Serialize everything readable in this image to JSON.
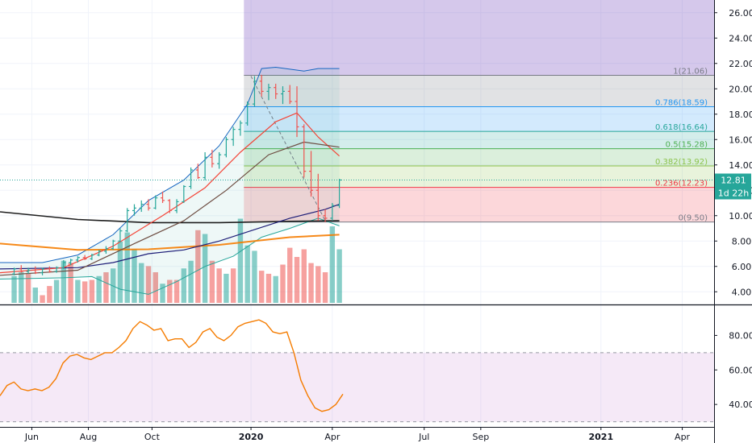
{
  "chart_data": {
    "type": "candlestick",
    "panels": [
      {
        "name": "price",
        "y_range": [
          3,
          27
        ],
        "y_ticks": [
          4,
          6,
          8,
          10,
          12,
          14,
          16,
          18,
          20,
          22,
          24,
          26
        ],
        "y_tick_labels": [
          "4.00",
          "6.00",
          "8.00",
          "10.00",
          "12.00",
          "14.00",
          "16.00",
          "18.00",
          "20.00",
          "22.00",
          "24.00",
          "26.00"
        ],
        "last_price_label": "12.81",
        "last_price": 12.81,
        "countdown_label": "1d 22h",
        "fib_levels": [
          {
            "label": "1(21.06)",
            "value": 21.06,
            "color": "#787b86"
          },
          {
            "label": "0.786(18.59)",
            "value": 18.59,
            "color": "#2196f3"
          },
          {
            "label": "0.618(16.64)",
            "value": 16.64,
            "color": "#26a69a"
          },
          {
            "label": "0.5(15.28)",
            "value": 15.28,
            "color": "#4caf50"
          },
          {
            "label": "0.382(13.92)",
            "value": 13.92,
            "color": "#8bc34a"
          },
          {
            "label": "0.236(12.23)",
            "value": 12.23,
            "color": "#f23645"
          },
          {
            "label": "0(9.50)",
            "value": 9.5,
            "color": "#787b86"
          }
        ],
        "candles": [
          [
            1,
            5.4,
            5.9,
            5.3,
            5.8
          ],
          [
            2,
            5.8,
            6.1,
            5.5,
            5.6
          ],
          [
            3,
            5.6,
            5.9,
            5.4,
            5.7
          ],
          [
            4,
            5.7,
            6.0,
            5.4,
            5.5
          ],
          [
            5,
            5.5,
            5.9,
            5.3,
            5.8
          ],
          [
            6,
            5.8,
            6.0,
            5.5,
            5.6
          ],
          [
            7,
            5.6,
            6.0,
            5.5,
            5.9
          ],
          [
            8,
            5.9,
            6.5,
            5.8,
            6.3
          ],
          [
            9,
            6.3,
            6.6,
            6.1,
            6.5
          ],
          [
            10,
            6.5,
            6.8,
            6.3,
            6.7
          ],
          [
            11,
            6.7,
            6.9,
            6.5,
            6.6
          ],
          [
            12,
            6.6,
            7.0,
            6.5,
            6.9
          ],
          [
            13,
            6.9,
            7.3,
            6.8,
            7.2
          ],
          [
            14,
            7.2,
            7.6,
            7.0,
            7.4
          ],
          [
            15,
            7.4,
            8.1,
            7.3,
            8.0
          ],
          [
            16,
            8.0,
            9.0,
            7.9,
            8.8
          ],
          [
            17,
            8.8,
            10.6,
            8.7,
            10.4
          ],
          [
            18,
            10.4,
            10.9,
            10.0,
            10.6
          ],
          [
            19,
            10.6,
            11.2,
            10.3,
            10.9
          ],
          [
            20,
            10.9,
            11.3,
            10.4,
            10.6
          ],
          [
            21,
            10.6,
            11.6,
            10.5,
            11.4
          ],
          [
            22,
            11.4,
            11.9,
            11.0,
            11.2
          ],
          [
            23,
            11.2,
            11.3,
            10.2,
            10.4
          ],
          [
            24,
            10.4,
            11.3,
            10.2,
            11.1
          ],
          [
            25,
            11.1,
            12.4,
            11.0,
            12.3
          ],
          [
            26,
            12.3,
            13.8,
            12.1,
            13.6
          ],
          [
            27,
            13.6,
            14.1,
            12.9,
            13.0
          ],
          [
            28,
            13.0,
            15.0,
            12.8,
            14.6
          ],
          [
            29,
            14.6,
            15.2,
            13.8,
            14.1
          ],
          [
            30,
            14.1,
            15.0,
            13.7,
            14.8
          ],
          [
            31,
            14.8,
            16.2,
            14.6,
            16.0
          ],
          [
            32,
            16.0,
            17.0,
            15.5,
            16.8
          ],
          [
            33,
            16.8,
            17.5,
            16.3,
            17.3
          ],
          [
            34,
            17.3,
            19.0,
            17.1,
            18.8
          ],
          [
            35,
            18.8,
            21.0,
            18.6,
            20.6
          ],
          [
            36,
            20.6,
            21.1,
            19.4,
            19.8
          ],
          [
            37,
            19.8,
            20.4,
            19.1,
            20.1
          ],
          [
            38,
            20.1,
            20.4,
            19.2,
            19.6
          ],
          [
            39,
            19.6,
            20.2,
            18.8,
            19.8
          ],
          [
            40,
            19.8,
            20.3,
            18.8,
            19.0
          ],
          [
            41,
            19.0,
            20.2,
            16.2,
            17.0
          ],
          [
            42,
            17.0,
            17.2,
            13.0,
            13.5
          ],
          [
            43,
            13.5,
            15.1,
            11.5,
            12.0
          ],
          [
            44,
            12.0,
            13.3,
            9.6,
            10.0
          ],
          [
            45,
            10.0,
            10.5,
            9.5,
            9.8
          ],
          [
            46,
            9.8,
            11.0,
            9.6,
            10.8
          ],
          [
            47,
            10.8,
            12.9,
            10.6,
            12.81
          ]
        ]
      },
      {
        "name": "rsi",
        "y_range": [
          27,
          97
        ],
        "y_ticks": [
          40,
          60,
          80
        ],
        "y_tick_labels": [
          "40.00",
          "60.00",
          "80.00"
        ],
        "band": [
          30,
          70
        ],
        "values": [
          45,
          51,
          53,
          49,
          48,
          49,
          48,
          50,
          55,
          64,
          68,
          69,
          67,
          66,
          68,
          70,
          70,
          73,
          77,
          84,
          88,
          86,
          83,
          84,
          77,
          78,
          78,
          73,
          76,
          82,
          84,
          79,
          77,
          80,
          85,
          87,
          88,
          89,
          87,
          82,
          81,
          82,
          70,
          54,
          45,
          38,
          36,
          37,
          40,
          46
        ]
      }
    ],
    "x_tick_labels": [
      "Jun",
      "Aug",
      "Oct",
      "2020",
      "Apr",
      "Jul",
      "Sep",
      "2021",
      "Apr"
    ],
    "x_tick_values": [
      3.5,
      11.5,
      20.5,
      34.5,
      46,
      59,
      67,
      84,
      95.5
    ],
    "x_range": [
      -1,
      100
    ],
    "volume": [
      [
        1,
        0.35,
        "up"
      ],
      [
        2,
        0.4,
        "up"
      ],
      [
        3,
        0.38,
        "dn"
      ],
      [
        4,
        0.2,
        "up"
      ],
      [
        5,
        0.1,
        "dn"
      ],
      [
        6,
        0.22,
        "dn"
      ],
      [
        7,
        0.3,
        "up"
      ],
      [
        8,
        0.55,
        "up"
      ],
      [
        9,
        0.52,
        "dn"
      ],
      [
        10,
        0.3,
        "up"
      ],
      [
        11,
        0.28,
        "dn"
      ],
      [
        12,
        0.3,
        "dn"
      ],
      [
        13,
        0.35,
        "up"
      ],
      [
        14,
        0.4,
        "dn"
      ],
      [
        15,
        0.45,
        "up"
      ],
      [
        16,
        0.8,
        "up"
      ],
      [
        17,
        0.92,
        "up"
      ],
      [
        18,
        0.7,
        "up"
      ],
      [
        19,
        0.52,
        "up"
      ],
      [
        20,
        0.48,
        "dn"
      ],
      [
        21,
        0.4,
        "dn"
      ],
      [
        22,
        0.25,
        "up"
      ],
      [
        23,
        0.3,
        "dn"
      ],
      [
        24,
        0.3,
        "dn"
      ],
      [
        25,
        0.45,
        "up"
      ],
      [
        26,
        0.55,
        "up"
      ],
      [
        27,
        0.95,
        "dn"
      ],
      [
        28,
        0.9,
        "up"
      ],
      [
        29,
        0.55,
        "dn"
      ],
      [
        30,
        0.45,
        "dn"
      ],
      [
        31,
        0.38,
        "up"
      ],
      [
        32,
        0.45,
        "dn"
      ],
      [
        33,
        1.1,
        "up"
      ],
      [
        34,
        0.75,
        "up"
      ],
      [
        35,
        0.68,
        "up"
      ],
      [
        36,
        0.42,
        "dn"
      ],
      [
        37,
        0.38,
        "dn"
      ],
      [
        38,
        0.35,
        "up"
      ],
      [
        39,
        0.5,
        "dn"
      ],
      [
        40,
        0.72,
        "dn"
      ],
      [
        41,
        0.6,
        "dn"
      ],
      [
        42,
        0.7,
        "dn"
      ],
      [
        43,
        0.52,
        "dn"
      ],
      [
        44,
        0.48,
        "dn"
      ],
      [
        45,
        0.4,
        "dn"
      ],
      [
        46,
        1.0,
        "up"
      ],
      [
        47,
        0.7,
        "up"
      ]
    ],
    "moving_averages": [
      {
        "color": "#1e1e1e",
        "values": [
          [
            -1,
            10.3
          ],
          [
            10,
            9.7
          ],
          [
            20,
            9.45
          ],
          [
            30,
            9.45
          ],
          [
            40,
            9.55
          ],
          [
            47,
            9.6
          ]
        ]
      },
      {
        "color": "#f57c00",
        "values": [
          [
            -1,
            7.8
          ],
          [
            10,
            7.3
          ],
          [
            20,
            7.35
          ],
          [
            30,
            7.7
          ],
          [
            40,
            8.3
          ],
          [
            47,
            8.5
          ]
        ]
      },
      {
        "color": "#1e1e78",
        "values": [
          [
            -1,
            5.8
          ],
          [
            10,
            5.9
          ],
          [
            15,
            6.3
          ],
          [
            20,
            7.0
          ],
          [
            25,
            7.3
          ],
          [
            30,
            8.0
          ],
          [
            35,
            8.9
          ],
          [
            40,
            9.8
          ],
          [
            45,
            10.5
          ],
          [
            47,
            10.9
          ]
        ]
      },
      {
        "color": "#f44336",
        "values": [
          [
            -1,
            5.5
          ],
          [
            8,
            5.9
          ],
          [
            15,
            7.6
          ],
          [
            22,
            10.0
          ],
          [
            28,
            12.2
          ],
          [
            33,
            15.0
          ],
          [
            38,
            17.4
          ],
          [
            41,
            18.1
          ],
          [
            44,
            16.2
          ],
          [
            47,
            14.7
          ]
        ]
      },
      {
        "color": "#6d4c41",
        "values": [
          [
            -1,
            5.3
          ],
          [
            10,
            5.7
          ],
          [
            18,
            7.8
          ],
          [
            25,
            9.6
          ],
          [
            31,
            12.0
          ],
          [
            37,
            14.8
          ],
          [
            42,
            15.8
          ],
          [
            47,
            15.4
          ]
        ]
      }
    ],
    "bollinger": {
      "upper": [
        [
          -1,
          6.3
        ],
        [
          5,
          6.3
        ],
        [
          10,
          6.9
        ],
        [
          15,
          8.5
        ],
        [
          20,
          11.2
        ],
        [
          25,
          12.8
        ],
        [
          30,
          15.5
        ],
        [
          34,
          18.8
        ],
        [
          36,
          21.6
        ],
        [
          38,
          21.7
        ],
        [
          42,
          21.4
        ],
        [
          44,
          21.6
        ],
        [
          47,
          21.6
        ]
      ],
      "lower": [
        [
          -1,
          5.0
        ],
        [
          8,
          5.1
        ],
        [
          12,
          5.2
        ],
        [
          16,
          4.2
        ],
        [
          20,
          3.8
        ],
        [
          24,
          4.8
        ],
        [
          28,
          6.0
        ],
        [
          32,
          6.8
        ],
        [
          36,
          8.3
        ],
        [
          40,
          9.0
        ],
        [
          44,
          9.8
        ],
        [
          47,
          9.2
        ]
      ],
      "line_color": "#26a69a",
      "fill_color": "#26a69a"
    }
  }
}
